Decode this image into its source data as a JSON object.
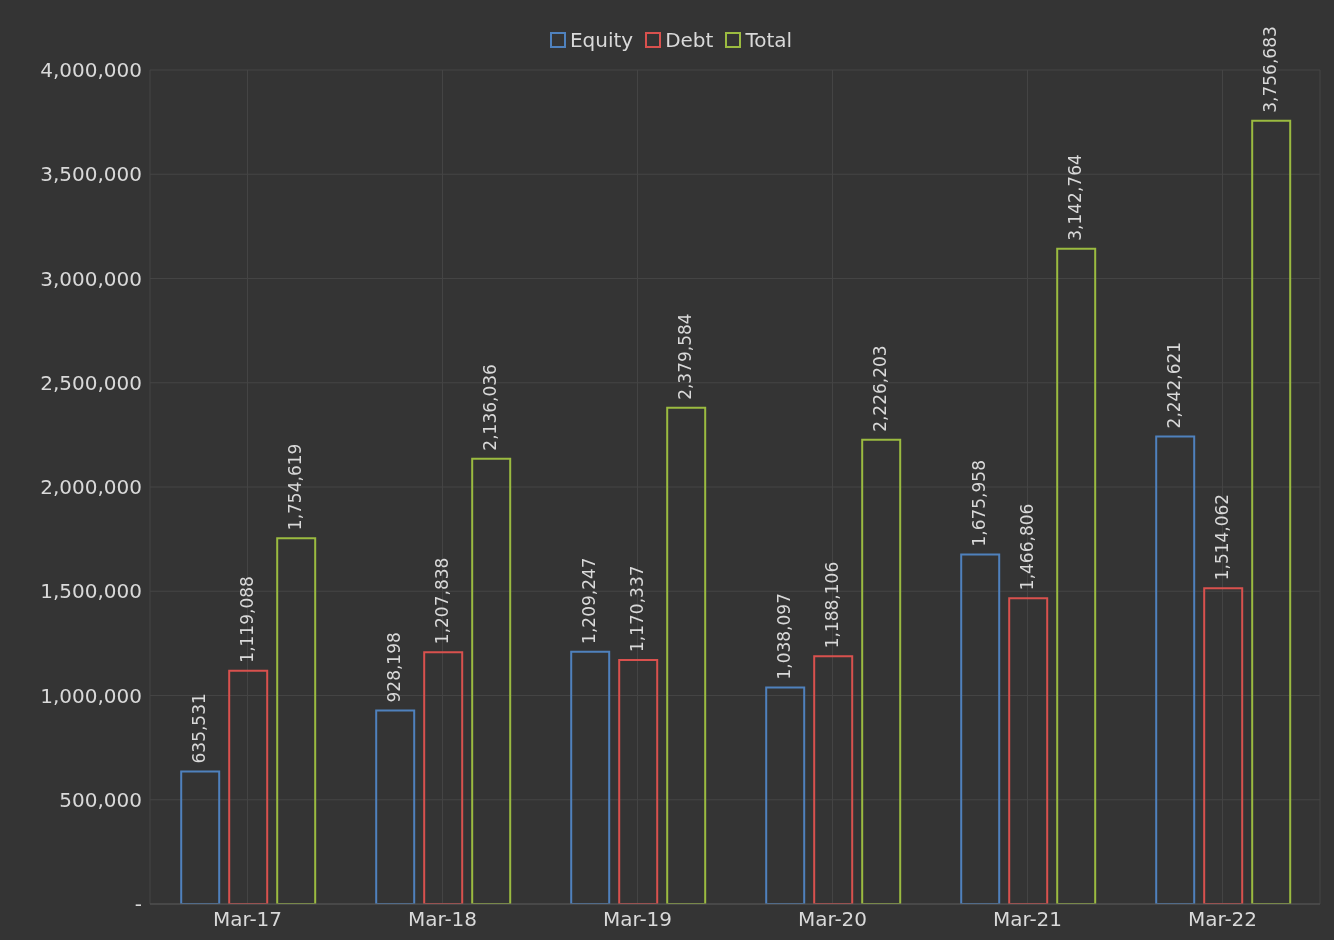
{
  "chart_data": {
    "type": "bar",
    "categories": [
      "Mar-17",
      "Mar-18",
      "Mar-19",
      "Mar-20",
      "Mar-21",
      "Mar-22"
    ],
    "series": [
      {
        "name": "Equity",
        "color": "#4f81bd",
        "values": [
          635531,
          928198,
          1209247,
          1038097,
          1675958,
          2242621
        ],
        "value_labels": [
          "635,531",
          "928,198",
          "1,209,247",
          "1,038,097",
          "1,675,958",
          "2,242,621"
        ]
      },
      {
        "name": "Debt",
        "color": "#d9514e",
        "values": [
          1119088,
          1207838,
          1170337,
          1188106,
          1466806,
          1514062
        ],
        "value_labels": [
          "1,119,088",
          "1,207,838",
          "1,170,337",
          "1,188,106",
          "1,466,806",
          "1,514,062"
        ]
      },
      {
        "name": "Total",
        "color": "#9bbb40",
        "values": [
          1754619,
          2136036,
          2379584,
          2226203,
          3142764,
          3756683
        ],
        "value_labels": [
          "1,754,619",
          "2,136,036",
          "2,379,584",
          "2,226,203",
          "3,142,764",
          "3,756,683"
        ]
      }
    ],
    "ylim": [
      0,
      4000000
    ],
    "yticks": [
      {
        "value": 0,
        "label": "-"
      },
      {
        "value": 500000,
        "label": "500,000"
      },
      {
        "value": 1000000,
        "label": "1,000,000"
      },
      {
        "value": 1500000,
        "label": "1,500,000"
      },
      {
        "value": 2000000,
        "label": "2,000,000"
      },
      {
        "value": 2500000,
        "label": "2,500,000"
      },
      {
        "value": 3000000,
        "label": "3,000,000"
      },
      {
        "value": 3500000,
        "label": "3,500,000"
      },
      {
        "value": 4000000,
        "label": "4,000,000"
      }
    ],
    "grid": true,
    "legend": "top"
  }
}
